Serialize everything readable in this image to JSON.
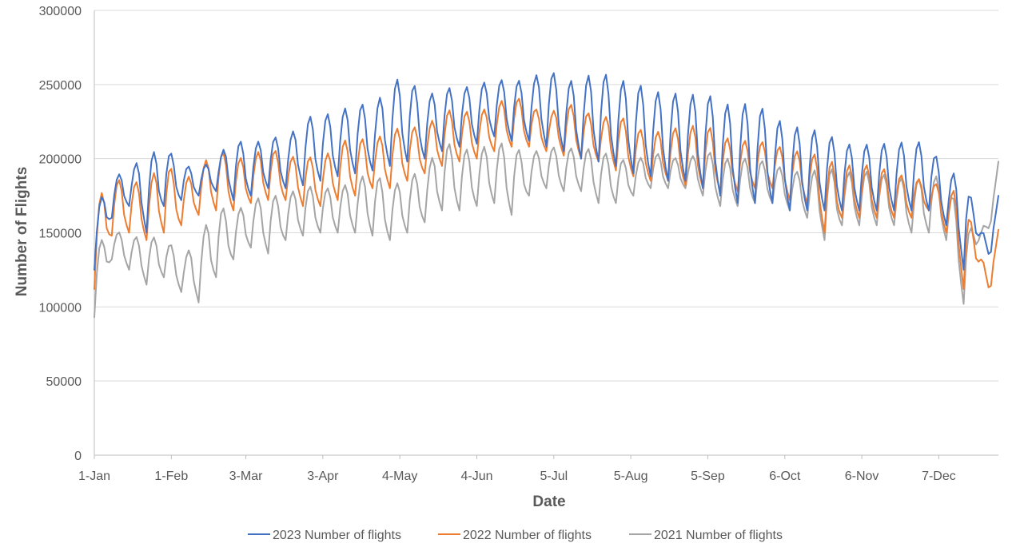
{
  "chart_data": {
    "type": "line",
    "xlabel": "Date",
    "ylabel": "Number of Flights",
    "ylim": [
      0,
      300000
    ],
    "yticks": [
      "0",
      "50000",
      "100000",
      "150000",
      "200000",
      "250000",
      "300000"
    ],
    "x_tick_labels": [
      "1-Jan",
      "1-Feb",
      "3-Mar",
      "3-Apr",
      "4-May",
      "4-Jun",
      "5-Jul",
      "5-Aug",
      "5-Sep",
      "6-Oct",
      "6-Nov",
      "7-Dec"
    ],
    "x_tick_days": [
      0,
      31,
      61,
      92,
      123,
      154,
      185,
      216,
      247,
      278,
      309,
      340
    ],
    "x_range_days": [
      0,
      364
    ],
    "grid": "horizontal",
    "legend_position": "bottom",
    "series": [
      {
        "name": "2023 Number of flights",
        "color": "#4472c4",
        "weekly_low": [
          125000,
          160000,
          168000,
          150000,
          168000,
          172000,
          175000,
          178000,
          172000,
          175000,
          180000,
          180000,
          182000,
          185000,
          188000,
          190000,
          192000,
          195000,
          198000,
          200000,
          205000,
          208000,
          210000,
          215000,
          212000,
          212000,
          208000,
          205000,
          200000,
          198000,
          195000,
          190000,
          188000,
          185000,
          185000,
          180000,
          175000,
          170000,
          170000,
          170000,
          165000,
          165000,
          165000,
          165000,
          165000,
          165000,
          165000,
          165000,
          165000,
          155000,
          125000,
          150000
        ],
        "weekly_high": [
          165000,
          186000,
          194000,
          201000,
          209000,
          196000,
          193000,
          200000,
          214000,
          208000,
          216000,
          212000,
          227000,
          230000,
          230000,
          239000,
          233000,
          252000,
          255000,
          241000,
          248000,
          247000,
          250000,
          253000,
          253000,
          252000,
          262000,
          252000,
          253000,
          260000,
          252000,
          253000,
          244000,
          246000,
          241000,
          246000,
          237000,
          236000,
          238000,
          228000,
          222000,
          220000,
          218000,
          210000,
          209000,
          210000,
          210000,
          212000,
          210000,
          190000,
          190000,
          152000
        ]
      },
      {
        "name": "2022 Number of flights",
        "color": "#ed7d31",
        "weekly_low": [
          112000,
          148000,
          150000,
          145000,
          150000,
          155000,
          162000,
          165000,
          165000,
          170000,
          172000,
          172000,
          168000,
          168000,
          172000,
          175000,
          180000,
          180000,
          185000,
          190000,
          195000,
          198000,
          200000,
          205000,
          208000,
          208000,
          205000,
          202000,
          200000,
          198000,
          192000,
          188000,
          185000,
          185000,
          182000,
          180000,
          178000,
          178000,
          180000,
          180000,
          172000,
          170000,
          150000,
          160000,
          160000,
          160000,
          160000,
          160000,
          165000,
          150000,
          112000,
          132000
        ],
        "weekly_high": [
          170000,
          186000,
          185000,
          183000,
          200000,
          184000,
          193000,
          207000,
          200000,
          201000,
          209000,
          200000,
          203000,
          198000,
          211000,
          214000,
          212000,
          219000,
          222000,
          220000,
          233000,
          232000,
          231000,
          236000,
          243000,
          237000,
          228000,
          238000,
          234000,
          226000,
          231000,
          222000,
          216000,
          221000,
          220000,
          225000,
          215000,
          212000,
          212000,
          210000,
          205000,
          205000,
          200000,
          195000,
          196000,
          195000,
          190000,
          187000,
          185000,
          180000,
          176000,
          132000
        ]
      },
      {
        "name": "2021 Number of flights",
        "color": "#a5a5a5",
        "weekly_low": [
          93000,
          132000,
          125000,
          115000,
          120000,
          110000,
          103000,
          120000,
          132000,
          140000,
          136000,
          145000,
          148000,
          150000,
          150000,
          150000,
          148000,
          145000,
          150000,
          157000,
          165000,
          165000,
          168000,
          170000,
          162000,
          175000,
          180000,
          178000,
          178000,
          170000,
          170000,
          175000,
          180000,
          180000,
          180000,
          175000,
          168000,
          168000,
          170000,
          170000,
          165000,
          160000,
          145000,
          155000,
          155000,
          155000,
          155000,
          150000,
          150000,
          145000,
          102000,
          150000
        ],
        "weekly_high": [
          140000,
          152000,
          148000,
          146000,
          148000,
          133000,
          145000,
          169000,
          163000,
          172000,
          175000,
          175000,
          182000,
          180000,
          180000,
          185000,
          192000,
          180000,
          188000,
          192000,
          212000,
          207000,
          205000,
          212000,
          208000,
          203000,
          208000,
          207000,
          207000,
          206000,
          200000,
          198000,
          204000,
          202000,
          198000,
          207000,
          200000,
          200000,
          200000,
          196000,
          192000,
          190000,
          195000,
          190000,
          192000,
          190000,
          188000,
          185000,
          188000,
          188000,
          153000,
          153000
        ]
      }
    ]
  }
}
